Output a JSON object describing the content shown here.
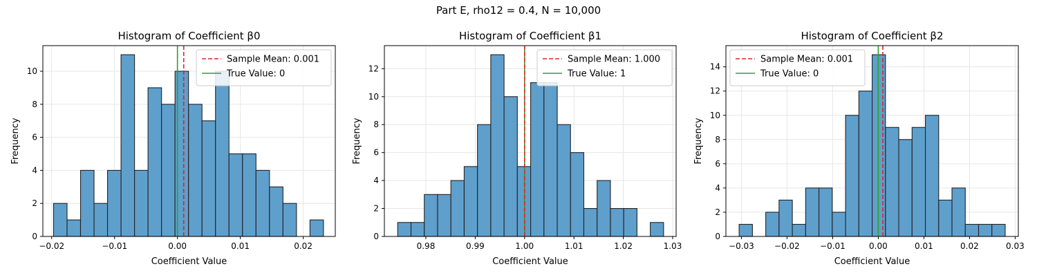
{
  "figure": {
    "suptitle": "Part E, rho12 = 0.4, N = 10,000"
  },
  "style": {
    "bar_fill": "#5f9fcc",
    "bar_edge": "#222222",
    "mean_color": "#d62728",
    "true_color": "#2ca02c",
    "grid_color": "#e6e6e6"
  },
  "chart_data": [
    {
      "type": "bar",
      "title": "Histogram of Coefficient β0",
      "xlabel": "Coefficient Value",
      "ylabel": "Frequency",
      "xlim": [
        -0.0214,
        0.0251
      ],
      "ylim": [
        0,
        11.55
      ],
      "xticks": [
        -0.02,
        -0.01,
        0.0,
        0.01,
        0.02
      ],
      "xtick_labels": [
        "−0.02",
        "−0.01",
        "0.00",
        "0.01",
        "0.02"
      ],
      "yticks": [
        0,
        2,
        4,
        6,
        8,
        10
      ],
      "bin_start": -0.0197,
      "bin_width": 0.002146,
      "values": [
        2,
        1,
        4,
        2,
        4,
        11,
        4,
        9,
        8,
        10,
        8,
        7,
        10,
        5,
        5,
        4,
        3,
        2,
        0,
        1
      ],
      "sample_mean": 0.001,
      "true_value": 0,
      "legend": [
        "Sample Mean: 0.001",
        "True Value: 0"
      ],
      "legend_position": "upper right"
    },
    {
      "type": "bar",
      "title": "Histogram of Coefficient β1",
      "xlabel": "Coefficient Value",
      "ylabel": "Frequency",
      "xlim": [
        0.9716,
        1.0307
      ],
      "ylim": [
        0,
        13.65
      ],
      "xticks": [
        0.98,
        0.99,
        1.0,
        1.01,
        1.02,
        1.03
      ],
      "xtick_labels": [
        "0.98",
        "0.99",
        "1.00",
        "1.01",
        "1.02",
        "1.03"
      ],
      "yticks": [
        0,
        2,
        4,
        6,
        8,
        10,
        12
      ],
      "bin_start": 0.9743,
      "bin_width": 0.002693,
      "values": [
        1,
        1,
        3,
        3,
        4,
        5,
        8,
        13,
        10,
        5,
        11,
        11,
        8,
        6,
        2,
        4,
        2,
        2,
        0,
        1
      ],
      "sample_mean": 1.0,
      "true_value": 1,
      "legend": [
        "Sample Mean: 1.000",
        "True Value: 1"
      ],
      "legend_position": "upper right"
    },
    {
      "type": "bar",
      "title": "Histogram of Coefficient β2",
      "xlabel": "Coefficient Value",
      "ylabel": "Frequency",
      "xlim": [
        -0.0334,
        0.0307
      ],
      "ylim": [
        0,
        15.75
      ],
      "xticks": [
        -0.03,
        -0.02,
        -0.01,
        0.0,
        0.01,
        0.02,
        0.03
      ],
      "xtick_labels": [
        "−0.03",
        "−0.02",
        "−0.01",
        "0.00",
        "0.01",
        "0.02",
        "0.03"
      ],
      "yticks": [
        0,
        2,
        4,
        6,
        8,
        10,
        12,
        14
      ],
      "bin_start": -0.0305,
      "bin_width": 0.002916,
      "values": [
        1,
        0,
        2,
        3,
        1,
        4,
        4,
        2,
        10,
        12,
        15,
        9,
        8,
        9,
        10,
        3,
        4,
        1,
        1,
        1
      ],
      "sample_mean": 0.001,
      "true_value": 0,
      "legend": [
        "Sample Mean: 0.001",
        "True Value: 0"
      ],
      "legend_position": "upper left"
    }
  ]
}
